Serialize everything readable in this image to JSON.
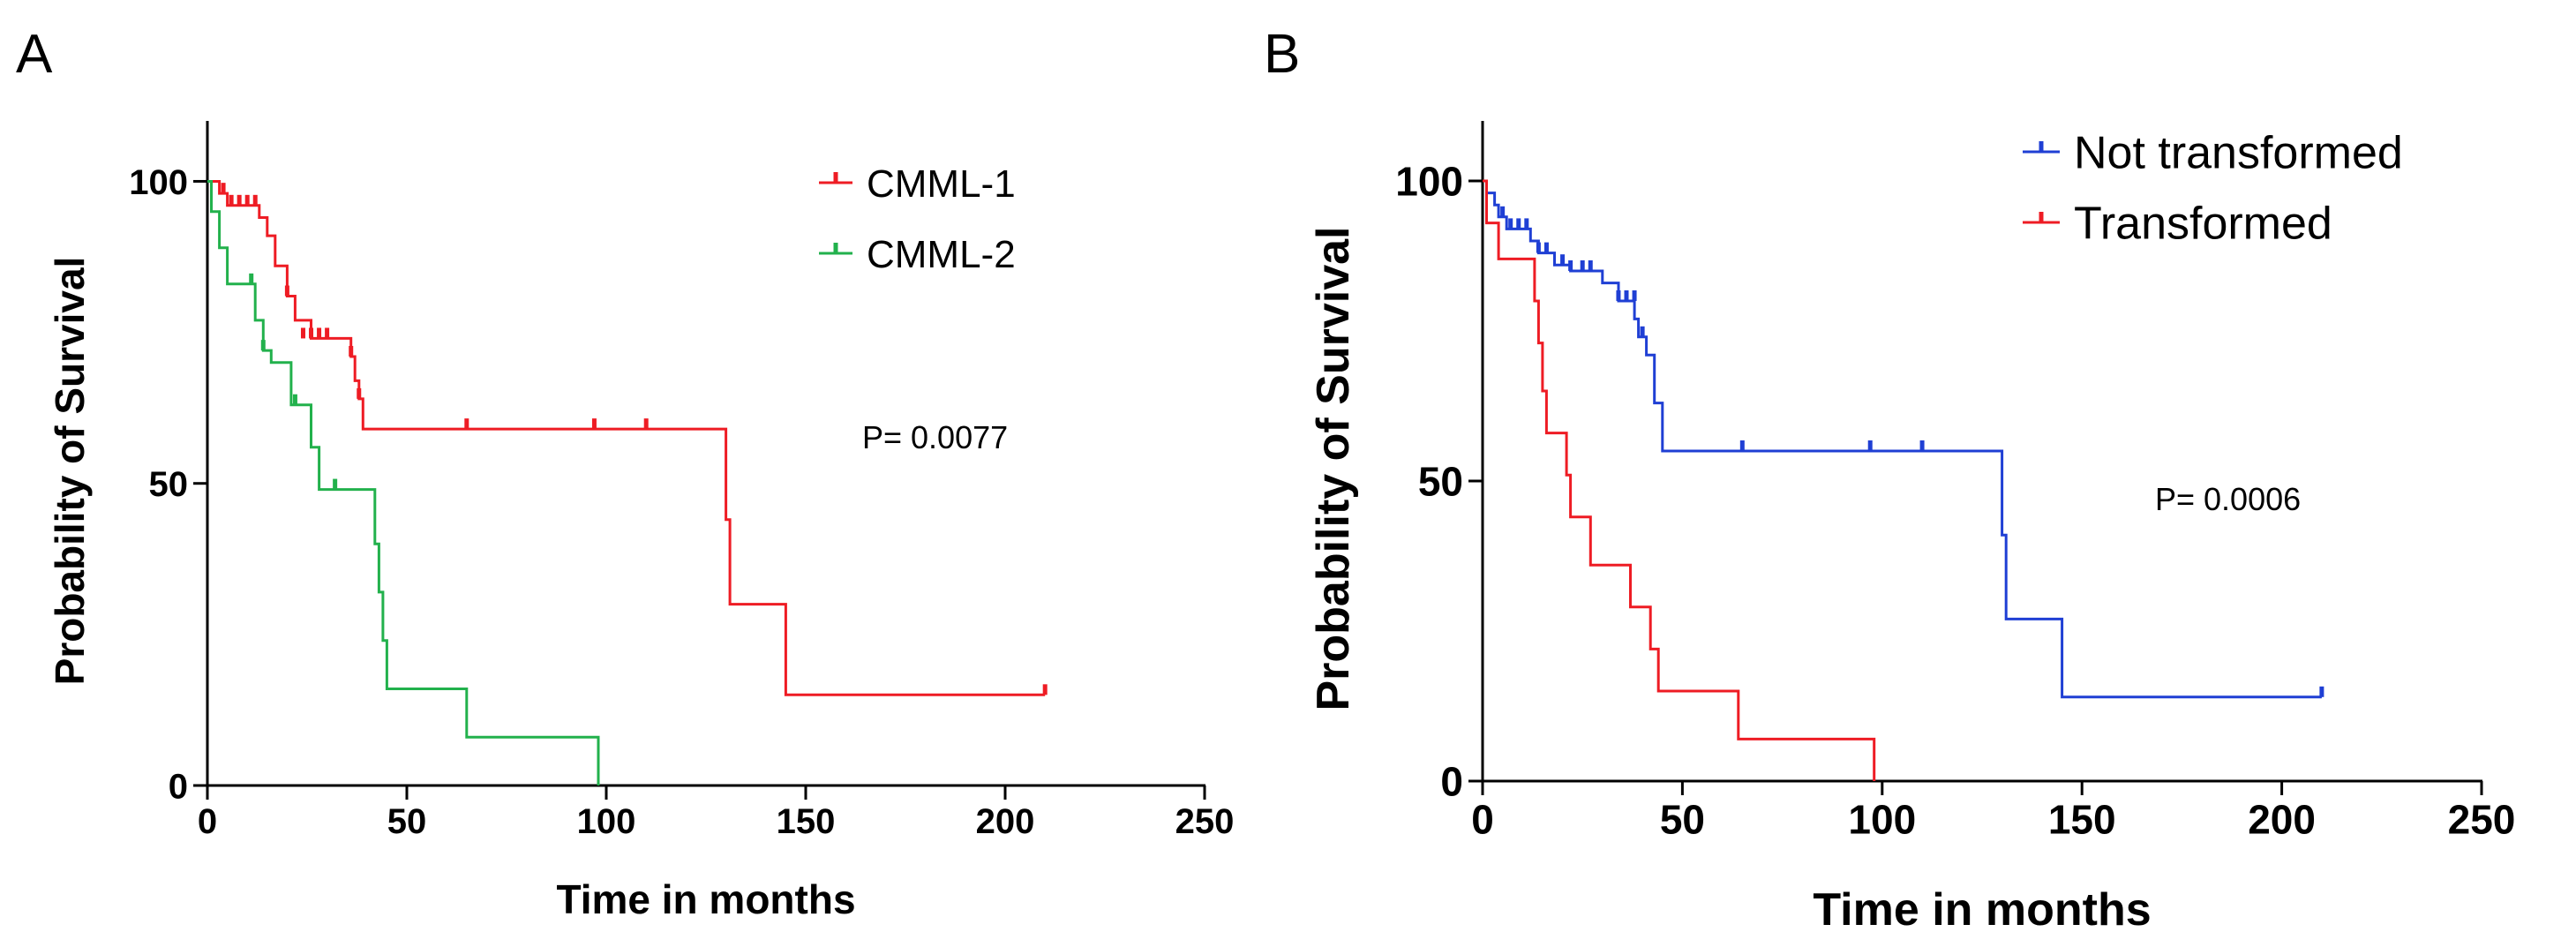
{
  "chart_data": [
    {
      "type": "line",
      "subtype": "kaplan-meier",
      "panel": "A",
      "xlabel": "Time in months",
      "ylabel": "Probability of Survival",
      "xlim": [
        0,
        250
      ],
      "ylim": [
        0,
        110
      ],
      "xticks": [
        0,
        50,
        100,
        150,
        200,
        250
      ],
      "yticks": [
        0,
        50,
        100
      ],
      "grid": false,
      "legend_position": "top-right",
      "annotation": "P= 0.0077",
      "series": [
        {
          "name": "CMML-1",
          "color": "#ee1c24",
          "steps": [
            [
              0,
              100
            ],
            [
              3,
              98
            ],
            [
              5,
              96
            ],
            [
              13,
              94
            ],
            [
              15,
              91
            ],
            [
              17,
              86
            ],
            [
              20,
              81
            ],
            [
              22,
              77
            ],
            [
              26,
              74
            ],
            [
              36,
              71
            ],
            [
              37,
              67
            ],
            [
              38,
              64
            ],
            [
              39,
              59
            ],
            [
              129,
              59
            ],
            [
              130,
              44
            ],
            [
              131,
              30
            ],
            [
              144,
              30
            ],
            [
              145,
              15
            ],
            [
              210,
              15
            ]
          ],
          "censored": [
            [
              4,
              98
            ],
            [
              6,
              96
            ],
            [
              8,
              96
            ],
            [
              10,
              96
            ],
            [
              12,
              96
            ],
            [
              20,
              81
            ],
            [
              24,
              74
            ],
            [
              26,
              74
            ],
            [
              28,
              74
            ],
            [
              30,
              74
            ],
            [
              36,
              71
            ],
            [
              38,
              64
            ],
            [
              65,
              59
            ],
            [
              97,
              59
            ],
            [
              110,
              59
            ],
            [
              210,
              15
            ]
          ]
        },
        {
          "name": "CMML-2",
          "color": "#22b14c",
          "steps": [
            [
              0,
              100
            ],
            [
              1,
              95
            ],
            [
              3,
              89
            ],
            [
              5,
              83
            ],
            [
              12,
              77
            ],
            [
              14,
              72
            ],
            [
              16,
              70
            ],
            [
              20,
              70
            ],
            [
              21,
              63
            ],
            [
              26,
              56
            ],
            [
              28,
              49
            ],
            [
              41,
              49
            ],
            [
              42,
              40
            ],
            [
              43,
              32
            ],
            [
              44,
              24
            ],
            [
              45,
              16
            ],
            [
              64,
              16
            ],
            [
              65,
              8
            ],
            [
              98,
              8
            ],
            [
              98,
              0
            ]
          ],
          "censored": [
            [
              11,
              83
            ],
            [
              14,
              72
            ],
            [
              22,
              63
            ],
            [
              32,
              49
            ]
          ]
        }
      ]
    },
    {
      "type": "line",
      "subtype": "kaplan-meier",
      "panel": "B",
      "xlabel": "Time in months",
      "ylabel": "Probability of Survival",
      "xlim": [
        0,
        250
      ],
      "ylim": [
        0,
        110
      ],
      "xticks": [
        0,
        50,
        100,
        150,
        200,
        250
      ],
      "yticks": [
        0,
        50,
        100
      ],
      "grid": false,
      "legend_position": "top-right",
      "annotation": "P= 0.0006",
      "series": [
        {
          "name": "Not transformed",
          "color": "#1f3fd4",
          "steps": [
            [
              0,
              100
            ],
            [
              1,
              98
            ],
            [
              3,
              96
            ],
            [
              4,
              94
            ],
            [
              6,
              92
            ],
            [
              12,
              90
            ],
            [
              14,
              88
            ],
            [
              18,
              86
            ],
            [
              22,
              85
            ],
            [
              30,
              83
            ],
            [
              34,
              80
            ],
            [
              38,
              77
            ],
            [
              39,
              74
            ],
            [
              41,
              71
            ],
            [
              43,
              63
            ],
            [
              45,
              55
            ],
            [
              129,
              55
            ],
            [
              130,
              41
            ],
            [
              131,
              27
            ],
            [
              144,
              27
            ],
            [
              145,
              14
            ],
            [
              210,
              14
            ]
          ],
          "censored": [
            [
              5,
              94
            ],
            [
              7,
              92
            ],
            [
              9,
              92
            ],
            [
              11,
              92
            ],
            [
              14,
              88
            ],
            [
              16,
              88
            ],
            [
              20,
              86
            ],
            [
              22,
              85
            ],
            [
              25,
              85
            ],
            [
              27,
              85
            ],
            [
              34,
              80
            ],
            [
              36,
              80
            ],
            [
              38,
              80
            ],
            [
              40,
              74
            ],
            [
              65,
              55
            ],
            [
              97,
              55
            ],
            [
              110,
              55
            ],
            [
              210,
              14
            ]
          ]
        },
        {
          "name": "Transformed",
          "color": "#ee1c24",
          "steps": [
            [
              0,
              100
            ],
            [
              1,
              93
            ],
            [
              4,
              87
            ],
            [
              12,
              87
            ],
            [
              13,
              80
            ],
            [
              14,
              73
            ],
            [
              15,
              65
            ],
            [
              16,
              58
            ],
            [
              20,
              58
            ],
            [
              21,
              51
            ],
            [
              22,
              44
            ],
            [
              26,
              44
            ],
            [
              27,
              36
            ],
            [
              35,
              36
            ],
            [
              37,
              29
            ],
            [
              41,
              29
            ],
            [
              42,
              22
            ],
            [
              44,
              15
            ],
            [
              63,
              15
            ],
            [
              64,
              7
            ],
            [
              97,
              7
            ],
            [
              98,
              0
            ]
          ],
          "censored": []
        }
      ]
    }
  ]
}
